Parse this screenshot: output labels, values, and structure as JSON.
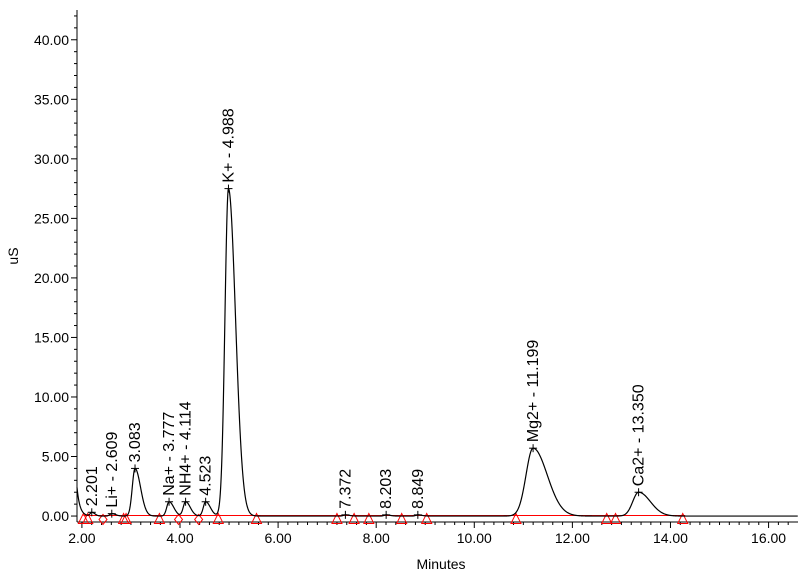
{
  "chart_data": {
    "type": "line",
    "title": "",
    "xlabel": "Minutes",
    "ylabel": "uS",
    "xlim": [
      1.9,
      16.6
    ],
    "ylim": [
      -0.5,
      42.5
    ],
    "grid": false,
    "x_ticks": [
      "2.00",
      "4.00",
      "6.00",
      "8.00",
      "10.00",
      "12.00",
      "14.00",
      "16.00"
    ],
    "x_tick_values": [
      2,
      4,
      6,
      8,
      10,
      12,
      14,
      16
    ],
    "y_ticks": [
      "0.00",
      "5.00",
      "10.00",
      "15.00",
      "20.00",
      "25.00",
      "30.00",
      "35.00",
      "40.00"
    ],
    "y_tick_values": [
      0,
      5,
      10,
      15,
      20,
      25,
      30,
      35,
      40
    ],
    "colors": {
      "trace": "#000000",
      "baseline": "#ff0000",
      "marker": "#ff0000",
      "axis": "#000000"
    },
    "peaks": [
      {
        "label": "2.201",
        "time": 2.201,
        "height": 0.3,
        "width": 0.04
      },
      {
        "label": "Li+ - 2.609",
        "time": 2.609,
        "height": 0.2,
        "width": 0.05
      },
      {
        "label": "3.083",
        "time": 3.083,
        "height": 4.0,
        "width": 0.07
      },
      {
        "label": "Na+ - 3.777",
        "time": 3.777,
        "height": 1.2,
        "width": 0.06
      },
      {
        "label": "NH4+ - 4.114",
        "time": 4.114,
        "height": 1.2,
        "width": 0.06
      },
      {
        "label": "4.523",
        "time": 4.523,
        "height": 1.2,
        "width": 0.06
      },
      {
        "label": "K+ - 4.988",
        "time": 4.988,
        "height": 27.5,
        "width": 0.09
      },
      {
        "label": "7.372",
        "time": 7.372,
        "height": 0.1,
        "width": 0.05
      },
      {
        "label": "8.203",
        "time": 8.203,
        "height": 0.1,
        "width": 0.05
      },
      {
        "label": "8.849",
        "time": 8.849,
        "height": 0.1,
        "width": 0.05
      },
      {
        "label": "Mg2+ - 11.199",
        "time": 11.199,
        "height": 5.7,
        "width": 0.18
      },
      {
        "label": "Ca2+ - 13.350",
        "time": 13.35,
        "height": 2.0,
        "width": 0.15
      }
    ],
    "baseline_markers": [
      2.03,
      2.12,
      2.85,
      2.9,
      3.58,
      4.78,
      5.56,
      7.2,
      7.55,
      7.85,
      8.52,
      9.03,
      10.85,
      12.7,
      12.88,
      14.25
    ],
    "diamond_markers": [
      2.43,
      3.97,
      4.38
    ],
    "initial_value": 2.4
  }
}
